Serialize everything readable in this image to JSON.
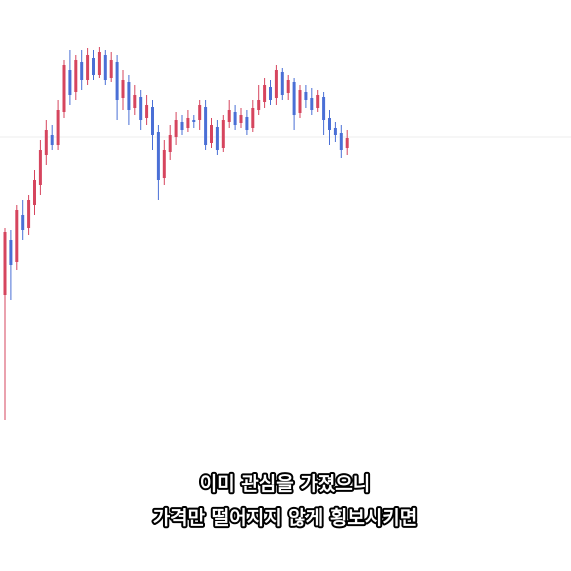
{
  "chart_data": {
    "type": "candlestick",
    "open": [
      276,
      331,
      309,
      356,
      343,
      366,
      386,
      416,
      436,
      426,
      459,
      501,
      479,
      509,
      491,
      513,
      496,
      516,
      493,
      509,
      473,
      489,
      463,
      474,
      453,
      464,
      439,
      393,
      419,
      434,
      449,
      443,
      451,
      451,
      464,
      428,
      444,
      423,
      449,
      459,
      448,
      454,
      443,
      461,
      469,
      484,
      473,
      499,
      478,
      489,
      458,
      479,
      473,
      463,
      474,
      453,
      443,
      438,
      423
    ],
    "high": [
      343,
      341,
      366,
      371,
      376,
      401,
      431,
      451,
      446,
      471,
      511,
      521,
      516,
      521,
      523,
      521,
      524,
      521,
      519,
      516,
      501,
      496,
      486,
      481,
      476,
      471,
      446,
      431,
      446,
      459,
      456,
      461,
      456,
      471,
      471,
      453,
      451,
      456,
      471,
      466,
      463,
      461,
      471,
      486,
      493,
      491,
      506,
      503,
      496,
      493,
      486,
      486,
      483,
      481,
      479,
      461,
      449,
      446,
      441
    ],
    "low": [
      151,
      271,
      301,
      331,
      336,
      356,
      376,
      406,
      421,
      421,
      453,
      466,
      471,
      481,
      486,
      491,
      493,
      486,
      489,
      451,
      461,
      446,
      456,
      441,
      446,
      421,
      371,
      386,
      411,
      426,
      436,
      439,
      443,
      441,
      421,
      423,
      416,
      419,
      443,
      441,
      443,
      436,
      439,
      456,
      463,
      466,
      466,
      471,
      471,
      441,
      453,
      463,
      456,
      459,
      436,
      426,
      429,
      413,
      416
    ],
    "close": [
      339,
      306,
      361,
      341,
      371,
      391,
      421,
      441,
      426,
      461,
      506,
      476,
      511,
      491,
      516,
      496,
      519,
      491,
      511,
      471,
      491,
      461,
      476,
      451,
      466,
      436,
      391,
      421,
      436,
      451,
      441,
      453,
      449,
      466,
      426,
      446,
      421,
      451,
      461,
      446,
      456,
      441,
      463,
      471,
      486,
      471,
      501,
      476,
      491,
      456,
      481,
      471,
      461,
      476,
      451,
      441,
      436,
      421,
      433
    ],
    "up_color": "#d6455e",
    "down_color": "#4a6fd6",
    "ylim": [
      0,
      571
    ],
    "hline": 434,
    "caption": [
      "이미 관심을 가졌으니",
      "가격만 떨어지지 않게 횡보시키면"
    ]
  }
}
